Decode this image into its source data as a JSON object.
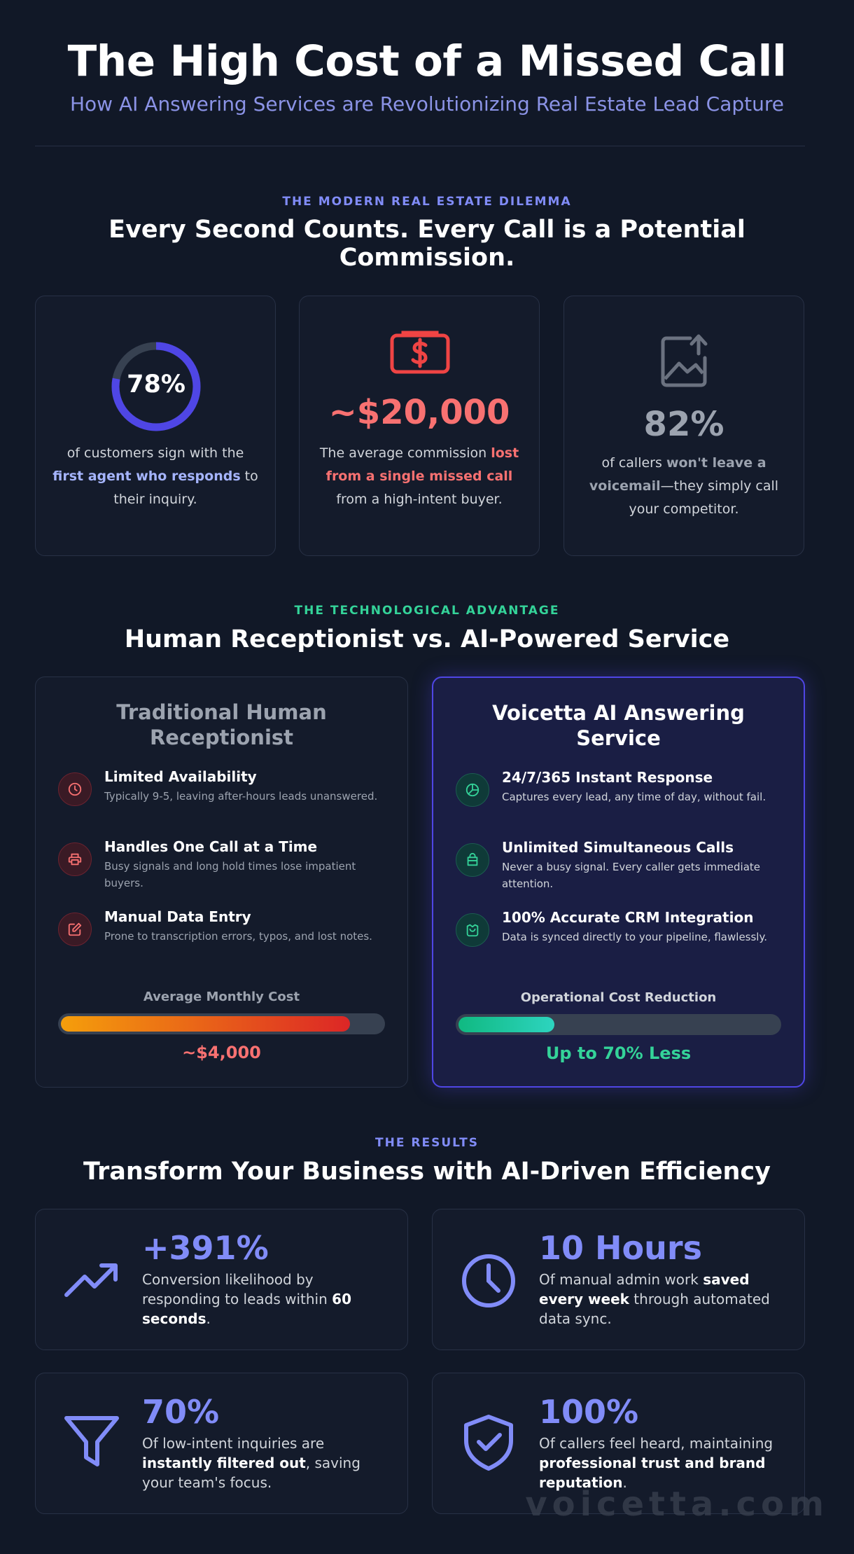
{
  "header": {
    "title": "The High Cost of a Missed Call",
    "subtitle": "How AI Answering Services are Revolutionizing Real Estate Lead Capture"
  },
  "dilemma": {
    "eyebrow": "THE MODERN REAL ESTATE DILEMMA",
    "title": "Every Second Counts. Every Call is a Potential Commission.",
    "stats": [
      {
        "value": "78%",
        "fraction": 0.78,
        "icon": "donut-chart-icon",
        "pre": "of customers sign with the ",
        "bold": "first agent who responds",
        "post": " to their inquiry."
      },
      {
        "value": "~$20,000",
        "icon": "money-icon",
        "pre": "The average commission ",
        "bold": "lost from a single missed call",
        "post": " from a high-intent buyer."
      },
      {
        "value": "82%",
        "icon": "voicemail-icon",
        "pre": "of callers ",
        "bold": "won't leave a voicemail",
        "post": "—they simply call your competitor."
      }
    ]
  },
  "comparison": {
    "eyebrow": "THE TECHNOLOGICAL ADVANTAGE",
    "title": "Human Receptionist vs. AI-Powered Service",
    "human": {
      "title": "Traditional Human Receptionist",
      "features": [
        {
          "icon": "clock-icon",
          "title": "Limited Availability",
          "desc": "Typically 9-5, leaving after-hours leads unanswered."
        },
        {
          "icon": "printer-icon",
          "title": "Handles One Call at a Time",
          "desc": "Busy signals and long hold times lose impatient buyers."
        },
        {
          "icon": "edit-icon",
          "title": "Manual Data Entry",
          "desc": "Prone to transcription errors, typos, and lost notes."
        }
      ],
      "bar_label": "Average Monthly Cost",
      "bar_fraction": 0.9,
      "bar_value": "~$4,000",
      "colors": {
        "bar_start": "#f59e0b",
        "bar_end": "#dc2626"
      }
    },
    "ai": {
      "title": "Voicetta AI Answering Service",
      "features": [
        {
          "icon": "pie-chart-icon",
          "title": "24/7/365 Instant Response",
          "desc": "Captures every lead, any time of day, without fail."
        },
        {
          "icon": "stack-icon",
          "title": "Unlimited Simultaneous Calls",
          "desc": "Never a busy signal. Every caller gets immediate attention."
        },
        {
          "icon": "bag-icon",
          "title": "100% Accurate CRM Integration",
          "desc": "Data is synced directly to your pipeline, flawlessly."
        }
      ],
      "bar_label": "Operational Cost Reduction",
      "bar_fraction": 0.3,
      "bar_value": "Up to 70% Less",
      "colors": {
        "bar_start": "#10b981",
        "bar_end": "#2dd4bf"
      }
    }
  },
  "results": {
    "eyebrow": "THE RESULTS",
    "title": "Transform Your Business with AI-Driven Efficiency",
    "items": [
      {
        "icon": "trending-up-icon",
        "value": "+391%",
        "p1": "Conversion likelihood by responding to leads within ",
        "b1": "60 seconds",
        "p2": "."
      },
      {
        "icon": "clock-icon",
        "value": "10 Hours",
        "p1": "Of manual admin work ",
        "b1": "saved every week",
        "p2": " through automated data sync."
      },
      {
        "icon": "filter-icon",
        "value": "70%",
        "p1": "Of low-intent inquiries are ",
        "b1": "instantly filtered out",
        "p2": ", saving your team's focus."
      },
      {
        "icon": "shield-check-icon",
        "value": "100%",
        "p1": "Of callers feel heard, maintaining ",
        "b1": "professional trust and brand reputation",
        "p2": "."
      }
    ]
  },
  "watermark": "voicetta.com",
  "colors": {
    "background": "#111827",
    "accent": "#818cf8",
    "green": "#34d399",
    "red": "#f87171"
  }
}
